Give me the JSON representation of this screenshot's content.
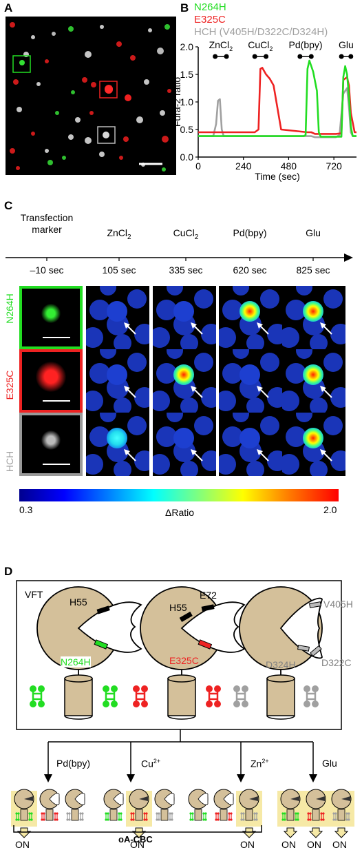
{
  "panels": {
    "a": "A",
    "b": "B",
    "c": "C",
    "d": "D"
  },
  "colors": {
    "green": "#22dd22",
    "red": "#ee2222",
    "grey": "#a0a0a0",
    "tan": "#d4c09a",
    "highlight": "#f6e9a6"
  },
  "panel_b": {
    "legend": [
      "N264H",
      "E325C",
      "HCH (V405H/D322C/D324H)"
    ],
    "stim_labels": [
      "ZnCl",
      "CuCl",
      "Pd(bpy)",
      "Glu"
    ],
    "stim_sub": "2",
    "ylabel": "Fura-2 ratio",
    "xlabel": "Time (sec)",
    "yticks": [
      "0.0",
      "0.5",
      "1.0",
      "1.5",
      "2.0"
    ],
    "xticks": [
      "0",
      "240",
      "480",
      "720"
    ]
  },
  "chart_data": {
    "type": "line",
    "title": "",
    "xlabel": "Time (sec)",
    "ylabel": "Fura-2 ratio",
    "xlim": [
      0,
      840
    ],
    "ylim": [
      0,
      2.0
    ],
    "series": [
      {
        "name": "HCH (V405H/D322C/D324H)",
        "color": "#a0a0a0",
        "x": [
          0,
          80,
          95,
          105,
          115,
          125,
          135,
          600,
          620,
          660,
          700,
          730,
          750,
          770,
          790,
          800,
          810,
          820,
          840
        ],
        "y": [
          0.38,
          0.38,
          0.6,
          1.02,
          1.05,
          0.5,
          0.38,
          0.38,
          0.36,
          0.36,
          0.36,
          0.36,
          0.4,
          1.15,
          1.25,
          0.9,
          0.45,
          0.38,
          0.38
        ]
      },
      {
        "name": "E325C",
        "color": "#ee2222",
        "x": [
          0,
          300,
          320,
          330,
          340,
          360,
          380,
          400,
          440,
          580,
          600,
          620,
          660,
          730,
          760,
          770,
          790,
          800,
          810,
          830,
          840
        ],
        "y": [
          0.45,
          0.45,
          0.5,
          1.6,
          1.62,
          1.5,
          1.42,
          1.3,
          0.5,
          0.45,
          0.45,
          0.42,
          0.42,
          0.42,
          0.43,
          1.4,
          1.45,
          1.3,
          0.8,
          0.45,
          0.45
        ]
      },
      {
        "name": "N264H",
        "color": "#22dd22",
        "x": [
          0,
          560,
          570,
          580,
          590,
          610,
          630,
          640,
          650,
          700,
          760,
          770,
          780,
          790,
          800,
          810,
          820,
          840
        ],
        "y": [
          0.38,
          0.38,
          0.4,
          1.6,
          1.75,
          1.55,
          1.2,
          0.45,
          0.37,
          0.37,
          0.37,
          1.45,
          1.65,
          1.5,
          1.1,
          0.55,
          0.38,
          0.38
        ]
      }
    ]
  },
  "panel_c": {
    "timeline_cols": [
      {
        "title": "Transfection\nmarker",
        "time": "–10 sec"
      },
      {
        "title": "ZnCl",
        "sub": "2",
        "time": "105 sec"
      },
      {
        "title": "CuCl",
        "sub": "2",
        "time": "335 sec"
      },
      {
        "title": "Pd(bpy)",
        "time": "620 sec"
      },
      {
        "title": "Glu",
        "time": "825 sec"
      }
    ],
    "rows": [
      "N264H",
      "E325C",
      "HCH"
    ],
    "colorbar_min": "0.3",
    "colorbar_max": "2.0",
    "colorbar_label": "ΔRatio"
  },
  "panel_d": {
    "vft_label": "VFT",
    "mutant1": {
      "site1": "H55",
      "site2": "N264H"
    },
    "mutant2": {
      "site1": "H55",
      "site2": "E72",
      "site3": "E325C"
    },
    "mutant3": {
      "site1": "V405H",
      "site2": "D322C",
      "site3": "D324H"
    },
    "branches": [
      "Pd(bpy)",
      "Cu",
      "Zn",
      "Glu"
    ],
    "branch_sup": [
      "",
      "2+",
      "2+",
      ""
    ],
    "on_label": "ON",
    "bracket_label": "oA-CBC"
  }
}
